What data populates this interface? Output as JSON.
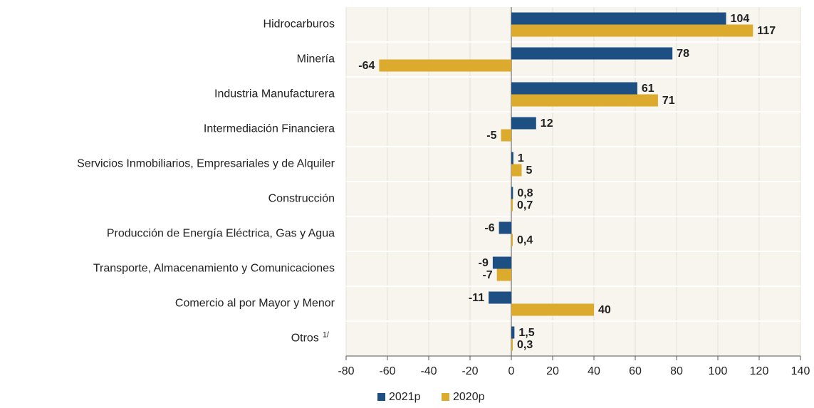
{
  "chart_data": {
    "type": "hbar",
    "categories": [
      "Hidrocarburos",
      "Minería",
      "Industria Manufacturera",
      "Intermediación Financiera",
      "Servicios Inmobiliarios, Empresariales y de Alquiler",
      "Construcción",
      "Producción de Energía Eléctrica, Gas y Agua",
      "Transporte, Almacenamiento y Comunicaciones",
      "Comercio al por Mayor y Menor",
      "Otros"
    ],
    "otros_note": "1/",
    "series": [
      {
        "name": "2021p",
        "color": "#1d4f83",
        "values": [
          104,
          78,
          61,
          12,
          1,
          0.8,
          -6,
          -9,
          -11,
          1.5
        ],
        "value_labels": [
          "104",
          "78",
          "61",
          "12",
          "1",
          "0,8",
          "-6",
          "-9",
          "-11",
          "1,5"
        ]
      },
      {
        "name": "2020p",
        "color": "#dcaa2d",
        "values": [
          117,
          -64,
          71,
          -5,
          5,
          0.7,
          0.4,
          -7,
          40,
          0.3
        ],
        "value_labels": [
          "117",
          "-64",
          "71",
          "-5",
          "5",
          "0,7",
          "0,4",
          "-7",
          "40",
          "0,3"
        ]
      }
    ],
    "xlim": [
      -80,
      140
    ],
    "xticks": [
      -80,
      -60,
      -40,
      -20,
      0,
      20,
      40,
      60,
      80,
      100,
      120,
      140
    ],
    "grid": true
  }
}
